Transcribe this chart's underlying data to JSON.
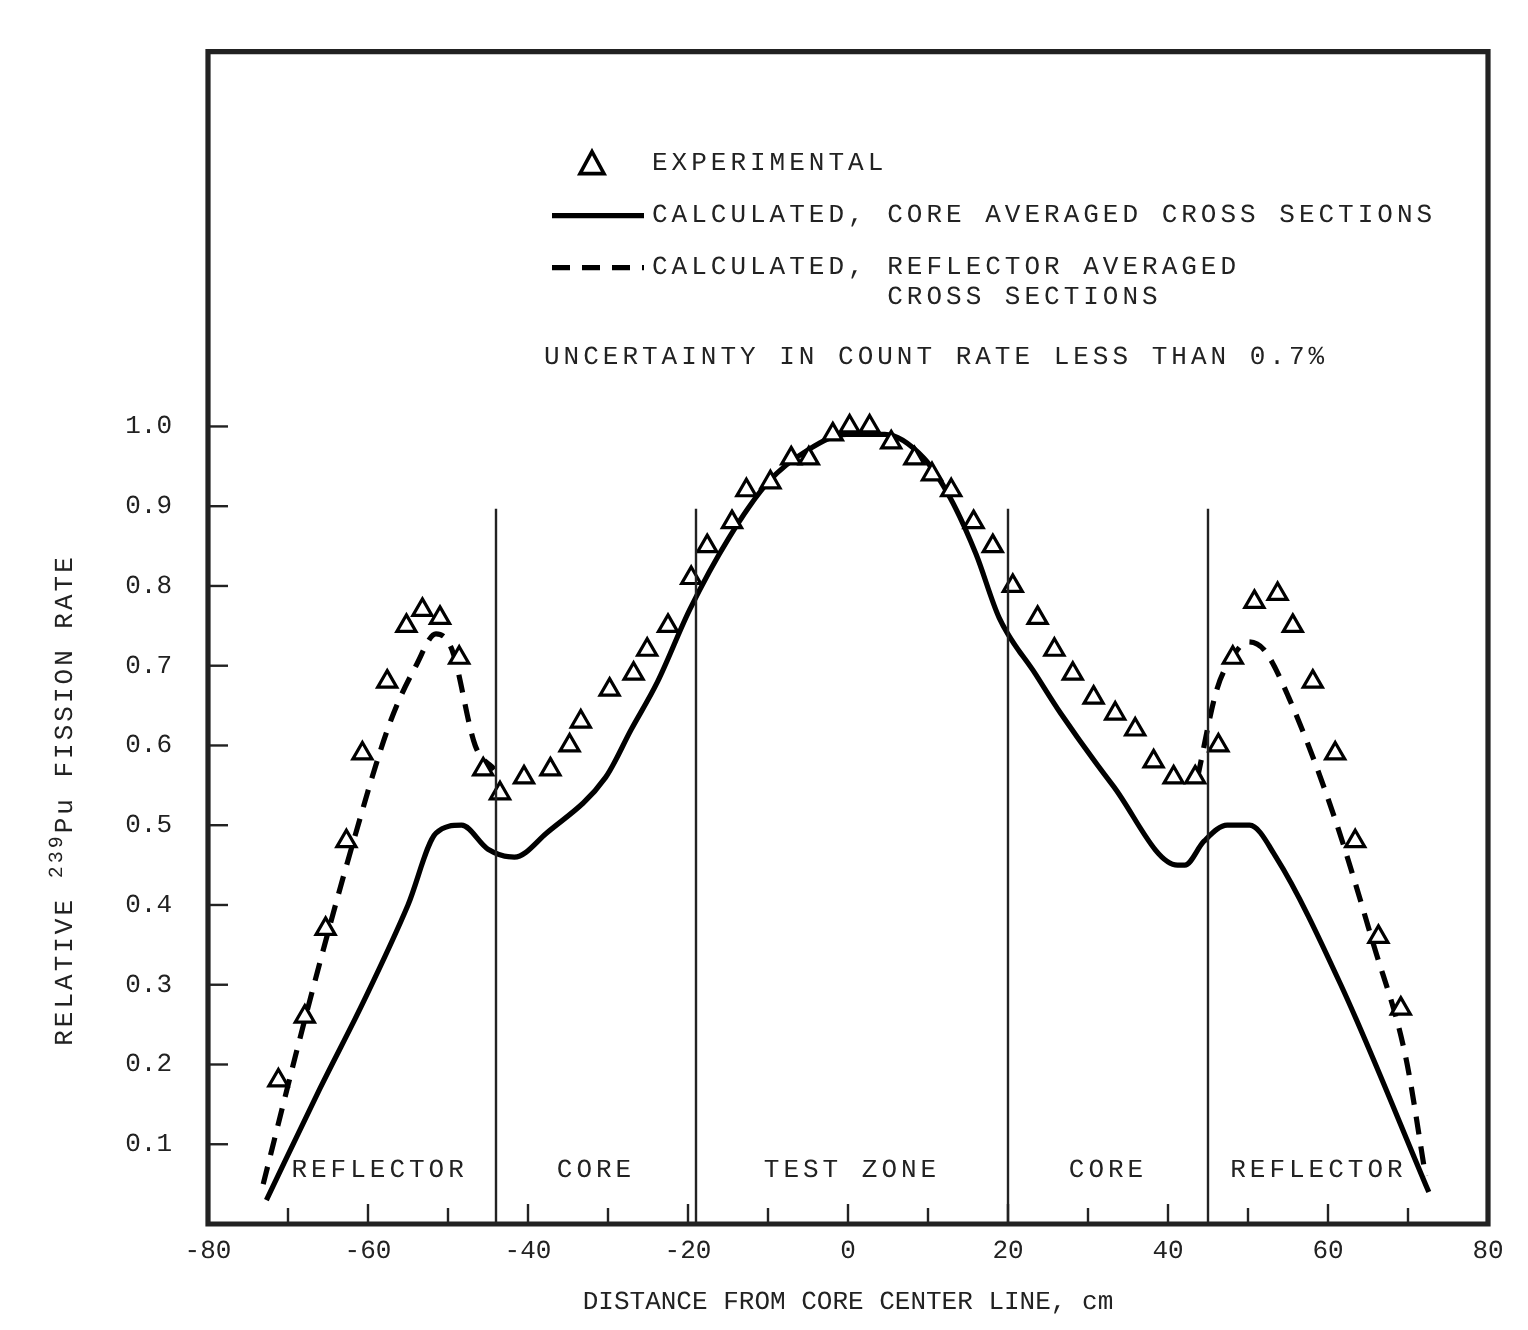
{
  "chart_data": {
    "type": "line",
    "xlabel": "DISTANCE FROM CORE CENTER LINE, cm",
    "ylabel": "RELATIVE $^{239}$Pu FISSION RATE",
    "xlim": [
      -80,
      80
    ],
    "ylim": [
      0,
      1.47
    ],
    "xticks": [
      -80,
      {
        "value": -70,
        "label": null
      },
      -60,
      {
        "value": -50,
        "label": null
      },
      -40,
      {
        "value": -30,
        "label": null
      },
      -20,
      {
        "value": -10,
        "label": null
      },
      0,
      {
        "value": 10,
        "label": null
      },
      20,
      {
        "value": 30,
        "label": null
      },
      40,
      {
        "value": 50,
        "label": null
      },
      60,
      {
        "value": 70,
        "label": null
      },
      80
    ],
    "yticks": [
      0.1,
      0.2,
      0.3,
      0.4,
      0.5,
      0.6,
      0.7,
      0.8,
      0.9,
      {
        "value": 1,
        "label": "1.0"
      }
    ],
    "legend": "top right",
    "series": [
      {
        "name": "EXPERIMENTAL",
        "type": "scatter",
        "marker": "triangle",
        "color": "#000000",
        "x": [
          -71.2,
          -67.9,
          -65.3,
          -62.7,
          -60.7,
          -57.6,
          -55.2,
          -53.2,
          -51,
          -48.6,
          -45.6,
          -43.5,
          -40.5,
          -37.2,
          -34.8,
          -33.4,
          -29.8,
          -26.8,
          -25.1,
          -22.5,
          -19.6,
          -17.6,
          -14.5,
          -12.7,
          -9.7,
          -7.1,
          -4.9,
          -1.9,
          0.2,
          2.7,
          5.4,
          8.3,
          10.5,
          12.9,
          15.7,
          18.1,
          20.6,
          23.7,
          25.8,
          28.1,
          30.7,
          33.4,
          35.9,
          38.2,
          40.7,
          43.4,
          46.3,
          48.1,
          50.8,
          53.7,
          55.6,
          58.1,
          60.9,
          63.4,
          66.3,
          69.1
        ],
        "values": [
          0.18,
          0.26,
          0.37,
          0.48,
          0.59,
          0.68,
          0.75,
          0.77,
          0.76,
          0.71,
          0.57,
          0.54,
          0.56,
          0.57,
          0.6,
          0.63,
          0.67,
          0.69,
          0.72,
          0.75,
          0.81,
          0.85,
          0.88,
          0.92,
          0.93,
          0.96,
          0.96,
          0.99,
          1.0,
          1.0,
          0.98,
          0.96,
          0.94,
          0.92,
          0.88,
          0.85,
          0.8,
          0.76,
          0.72,
          0.69,
          0.66,
          0.64,
          0.62,
          0.58,
          0.56,
          0.56,
          0.6,
          0.71,
          0.78,
          0.79,
          0.75,
          0.68,
          0.59,
          0.48,
          0.36,
          0.27
        ]
      },
      {
        "name": "CALCULATED, CORE AVERAGED CROSS SECTIONS",
        "line_style": "solid",
        "color": "#000000",
        "x": [
          -72.7,
          -66,
          -60.5,
          -55,
          -51.5,
          -48.3,
          -45,
          -41.7,
          -37.7,
          -30.3,
          -27.1,
          -23.8,
          -19.8,
          -14.9,
          -10,
          -5.1,
          -0.2,
          4.6,
          9.5,
          12.8,
          16,
          18.9,
          23.4,
          26.6,
          33.1,
          41.2,
          42.1,
          44.5,
          47.4,
          50.2,
          53.5,
          61.6,
          72.6
        ],
        "values": [
          0.03,
          0.17,
          0.28,
          0.4,
          0.49,
          0.5,
          0.47,
          0.46,
          0.49,
          0.56,
          0.62,
          0.68,
          0.77,
          0.86,
          0.93,
          0.97,
          0.99,
          0.99,
          0.96,
          0.91,
          0.84,
          0.76,
          0.69,
          0.64,
          0.55,
          0.45,
          0.45,
          0.48,
          0.5,
          0.5,
          0.46,
          0.3,
          0.04
        ]
      },
      {
        "name": "CALCULATED, REFLECTOR AVERAGED CROSS SECTIONS",
        "line_style": "dashed",
        "color": "#000000",
        "x": [
          -73.1,
          -67.8,
          -62.1,
          -57.2,
          -54,
          -51.5,
          -49.5,
          -46.6,
          -44.2,
          0,
          43.7,
          46.1,
          48,
          50,
          52,
          55.1,
          60.8,
          65.7,
          69.7,
          72.2
        ],
        "values": [
          0.05,
          0.26,
          0.47,
          0.63,
          0.7,
          0.74,
          0.72,
          0.6,
          0.57,
          null,
          0.56,
          0.67,
          0.71,
          0.73,
          0.72,
          0.66,
          0.51,
          0.35,
          0.21,
          0.06
        ]
      }
    ],
    "ref_lines": [
      {
        "axis": "x",
        "value": -44
      },
      {
        "axis": "x",
        "value": -19
      },
      {
        "axis": "x",
        "value": 20
      },
      {
        "axis": "x",
        "value": 45
      }
    ],
    "annotations": [
      "UNCERTAINTY IN COUNT RATE LESS THAN 0.7%",
      "REFLECTOR",
      "CORE",
      "TEST ZONE",
      "CORE",
      "REFLECTOR"
    ]
  }
}
